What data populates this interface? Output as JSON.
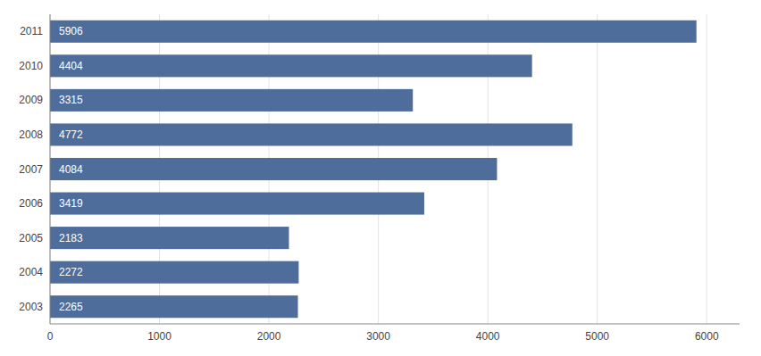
{
  "chart_data": {
    "type": "bar",
    "orientation": "horizontal",
    "categories": [
      "2011",
      "2010",
      "2009",
      "2008",
      "2007",
      "2006",
      "2005",
      "2004",
      "2003"
    ],
    "values": [
      5906,
      4404,
      3315,
      4772,
      4084,
      3419,
      2183,
      2272,
      2265
    ],
    "color": "#4F6D9B",
    "xlim": [
      0,
      6300
    ],
    "xticks": [
      0,
      1000,
      2000,
      3000,
      4000,
      5000,
      6000
    ],
    "grid": true,
    "data_labels": true
  }
}
